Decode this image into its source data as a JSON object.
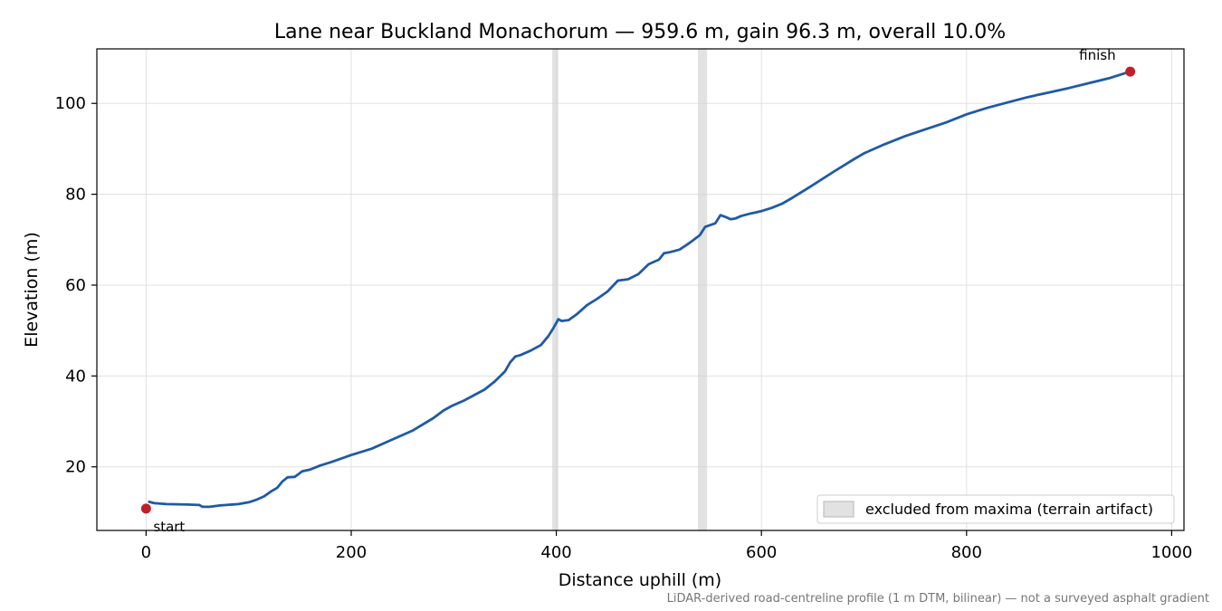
{
  "chart_data": {
    "type": "line",
    "title": "Lane near Buckland Monachorum — 959.6 m, gain 96.3 m, overall 10.0%",
    "xlabel": "Distance uphill (m)",
    "ylabel": "Elevation (m)",
    "xlim": [
      -48,
      1012
    ],
    "ylim": [
      6,
      112
    ],
    "xticks": [
      0,
      200,
      400,
      600,
      800,
      1000
    ],
    "yticks": [
      20,
      40,
      60,
      80,
      100
    ],
    "grid": true,
    "legend_position": "lower-right",
    "caption": "LiDAR-derived road-centreline profile (1 m DTM, bilinear) — not a surveyed asphalt gradient",
    "colors": {
      "line": "#1f5aa6",
      "endpoint": "#c1202a",
      "excluded": "#d3d3d3"
    },
    "series": [
      {
        "points": [
          [
            3,
            12.3
          ],
          [
            8,
            12.0
          ],
          [
            20,
            11.8
          ],
          [
            40,
            11.7
          ],
          [
            52,
            11.6
          ],
          [
            55,
            11.2
          ],
          [
            62,
            11.2
          ],
          [
            72,
            11.5
          ],
          [
            90,
            11.8
          ],
          [
            100,
            12.2
          ],
          [
            108,
            12.8
          ],
          [
            115,
            13.5
          ],
          [
            122,
            14.6
          ],
          [
            128,
            15.4
          ],
          [
            133,
            16.8
          ],
          [
            138,
            17.7
          ],
          [
            145,
            17.8
          ],
          [
            148,
            18.3
          ],
          [
            152,
            19.0
          ],
          [
            160,
            19.4
          ],
          [
            170,
            20.3
          ],
          [
            180,
            21.0
          ],
          [
            200,
            22.6
          ],
          [
            220,
            24.0
          ],
          [
            240,
            26.0
          ],
          [
            260,
            28.0
          ],
          [
            280,
            30.7
          ],
          [
            290,
            32.4
          ],
          [
            298,
            33.4
          ],
          [
            310,
            34.6
          ],
          [
            330,
            37.0
          ],
          [
            340,
            38.8
          ],
          [
            350,
            41.0
          ],
          [
            355,
            43.0
          ],
          [
            360,
            44.3
          ],
          [
            365,
            44.6
          ],
          [
            375,
            45.6
          ],
          [
            385,
            46.8
          ],
          [
            392,
            48.7
          ],
          [
            397,
            50.5
          ],
          [
            402,
            52.5
          ],
          [
            405,
            52.1
          ],
          [
            412,
            52.3
          ],
          [
            420,
            53.6
          ],
          [
            430,
            55.6
          ],
          [
            440,
            57.0
          ],
          [
            450,
            58.6
          ],
          [
            460,
            61.0
          ],
          [
            470,
            61.3
          ],
          [
            480,
            62.4
          ],
          [
            490,
            64.6
          ],
          [
            500,
            65.6
          ],
          [
            505,
            67.0
          ],
          [
            510,
            67.2
          ],
          [
            520,
            67.8
          ],
          [
            530,
            69.3
          ],
          [
            540,
            71.0
          ],
          [
            545,
            72.8
          ],
          [
            555,
            73.6
          ],
          [
            560,
            75.4
          ],
          [
            565,
            75.0
          ],
          [
            570,
            74.5
          ],
          [
            575,
            74.7
          ],
          [
            580,
            75.2
          ],
          [
            590,
            75.8
          ],
          [
            600,
            76.3
          ],
          [
            610,
            77.0
          ],
          [
            620,
            77.9
          ],
          [
            630,
            79.2
          ],
          [
            650,
            82.0
          ],
          [
            670,
            84.9
          ],
          [
            690,
            87.7
          ],
          [
            700,
            89.0
          ],
          [
            720,
            91.0
          ],
          [
            740,
            92.8
          ],
          [
            760,
            94.3
          ],
          [
            780,
            95.8
          ],
          [
            800,
            97.6
          ],
          [
            820,
            99.0
          ],
          [
            840,
            100.2
          ],
          [
            860,
            101.4
          ],
          [
            880,
            102.4
          ],
          [
            900,
            103.4
          ],
          [
            920,
            104.5
          ],
          [
            940,
            105.6
          ],
          [
            959.6,
            107.0
          ]
        ]
      }
    ],
    "excluded_ranges": [
      [
        396,
        402
      ],
      [
        538,
        547
      ]
    ],
    "endpoints": [
      {
        "label": "start",
        "x": 0,
        "y": 10.8
      },
      {
        "label": "finish",
        "x": 959.6,
        "y": 107.0
      }
    ],
    "legend": [
      {
        "label": "excluded from maxima (terrain artifact)"
      }
    ]
  }
}
